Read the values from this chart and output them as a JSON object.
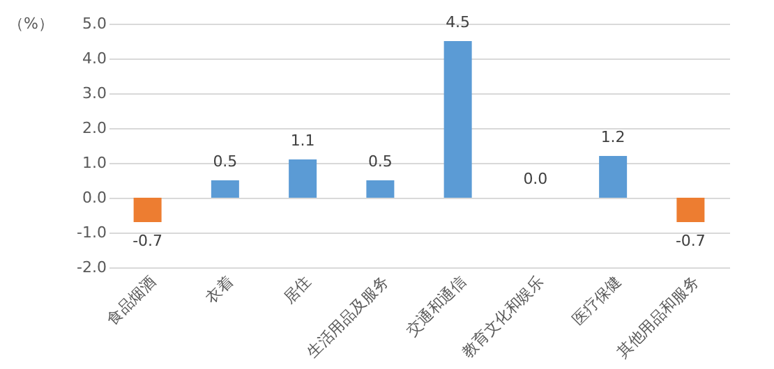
{
  "chart_data": {
    "type": "bar",
    "ylabel": "（%）",
    "categories": [
      "食品烟酒",
      "衣着",
      "居住",
      "生活用品及服务",
      "交通和通信",
      "教育文化和娱乐",
      "医疗保健",
      "其他用品和服务"
    ],
    "values": [
      -0.7,
      0.5,
      1.1,
      0.5,
      4.5,
      0.0,
      1.2,
      -0.7
    ],
    "value_labels": [
      "-0.7",
      "0.5",
      "1.1",
      "0.5",
      "4.5",
      "0.0",
      "1.2",
      "-0.7"
    ],
    "colors": [
      "#ed7d31",
      "#5b9bd5",
      "#5b9bd5",
      "#5b9bd5",
      "#5b9bd5",
      "#5b9bd5",
      "#5b9bd5",
      "#ed7d31"
    ],
    "ylim": [
      -2,
      5
    ],
    "yticks": [
      {
        "value": -2,
        "label": "-2.0"
      },
      {
        "value": -1,
        "label": "-1.0"
      },
      {
        "value": 0,
        "label": "0.0"
      },
      {
        "value": 1,
        "label": "1.0"
      },
      {
        "value": 2,
        "label": "2.0"
      },
      {
        "value": 3,
        "label": "3.0"
      },
      {
        "value": 4,
        "label": "4.0"
      },
      {
        "value": 5,
        "label": "5.0"
      }
    ],
    "grid": "y"
  }
}
